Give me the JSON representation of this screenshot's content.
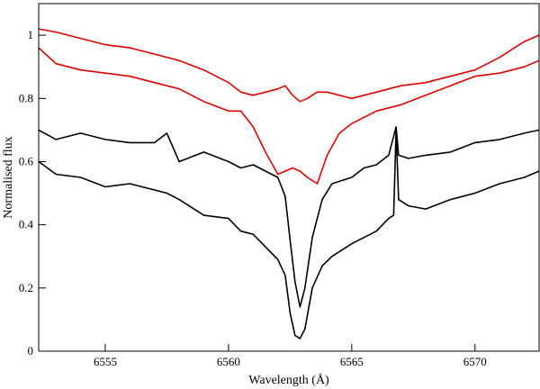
{
  "chart_data": {
    "type": "line",
    "title": "",
    "xlabel": "Wavelength (Å)",
    "ylabel": "Normalised flux",
    "xlim": [
      6552.3,
      6572.6
    ],
    "ylim": [
      0,
      1.1
    ],
    "xticks": [
      6555,
      6560,
      6565,
      6570
    ],
    "xtick_labels": [
      "6555",
      "6560",
      "6565",
      "6570"
    ],
    "yticks": [
      0,
      0.2,
      0.4,
      0.6,
      0.8,
      1
    ],
    "ytick_labels": [
      "0",
      "0.2",
      "0.4",
      "0.6",
      "0.8",
      "1"
    ],
    "grid": false,
    "legend": "none",
    "series": [
      {
        "color": "#dd0000",
        "x": [
          6552.3,
          6553,
          6554,
          6555,
          6556,
          6557,
          6558,
          6559,
          6560,
          6560.5,
          6561,
          6561.5,
          6562,
          6562.3,
          6562.6,
          6562.9,
          6563.2,
          6563.6,
          6564,
          6564.5,
          6565,
          6566,
          6567,
          6568,
          6569,
          6570,
          6571,
          6572,
          6572.6
        ],
        "y": [
          1.02,
          1.01,
          0.99,
          0.97,
          0.96,
          0.94,
          0.92,
          0.89,
          0.85,
          0.82,
          0.81,
          0.82,
          0.83,
          0.84,
          0.81,
          0.79,
          0.8,
          0.82,
          0.82,
          0.81,
          0.8,
          0.82,
          0.84,
          0.85,
          0.87,
          0.89,
          0.93,
          0.98,
          1.0
        ]
      },
      {
        "color": "#dd0000",
        "x": [
          6552.3,
          6553,
          6554,
          6555,
          6556,
          6557,
          6558,
          6559,
          6560,
          6560.5,
          6561,
          6561.5,
          6562,
          6562.3,
          6562.6,
          6562.9,
          6563.2,
          6563.6,
          6564,
          6564.5,
          6565,
          6566,
          6567,
          6568,
          6569,
          6570,
          6571,
          6572,
          6572.6
        ],
        "y": [
          0.96,
          0.91,
          0.89,
          0.88,
          0.87,
          0.85,
          0.83,
          0.79,
          0.76,
          0.76,
          0.71,
          0.63,
          0.56,
          0.57,
          0.58,
          0.57,
          0.55,
          0.53,
          0.62,
          0.69,
          0.72,
          0.76,
          0.78,
          0.81,
          0.84,
          0.87,
          0.88,
          0.9,
          0.92
        ]
      },
      {
        "color": "#000000",
        "x": [
          6552.3,
          6553,
          6554,
          6555,
          6556,
          6557,
          6557.5,
          6558,
          6559,
          6560,
          6560.5,
          6561,
          6561.5,
          6562,
          6562.3,
          6562.5,
          6562.7,
          6562.9,
          6563.1,
          6563.4,
          6563.8,
          6564.2,
          6565,
          6565.5,
          6566,
          6566.5,
          6566.8,
          6566.9,
          6567.3,
          6568,
          6569,
          6570,
          6571,
          6572,
          6572.6
        ],
        "y": [
          0.7,
          0.67,
          0.69,
          0.67,
          0.66,
          0.66,
          0.69,
          0.6,
          0.63,
          0.6,
          0.58,
          0.59,
          0.57,
          0.55,
          0.49,
          0.35,
          0.22,
          0.14,
          0.2,
          0.36,
          0.48,
          0.53,
          0.55,
          0.58,
          0.59,
          0.62,
          0.71,
          0.62,
          0.61,
          0.62,
          0.63,
          0.66,
          0.67,
          0.69,
          0.7
        ]
      },
      {
        "color": "#000000",
        "x": [
          6552.3,
          6553,
          6554,
          6555,
          6556,
          6557,
          6557.5,
          6558,
          6559,
          6560,
          6560.5,
          6561,
          6561.5,
          6562,
          6562.3,
          6562.5,
          6562.7,
          6562.9,
          6563.1,
          6563.4,
          6563.8,
          6564.2,
          6565,
          6566,
          6566.5,
          6566.7,
          6566.8,
          6566.9,
          6567.3,
          6568,
          6569,
          6570,
          6571,
          6572,
          6572.6
        ],
        "y": [
          0.6,
          0.56,
          0.55,
          0.52,
          0.53,
          0.51,
          0.5,
          0.48,
          0.43,
          0.42,
          0.38,
          0.37,
          0.33,
          0.29,
          0.24,
          0.12,
          0.05,
          0.04,
          0.07,
          0.2,
          0.27,
          0.3,
          0.34,
          0.38,
          0.42,
          0.43,
          0.7,
          0.48,
          0.46,
          0.45,
          0.48,
          0.5,
          0.53,
          0.55,
          0.57
        ]
      }
    ]
  }
}
